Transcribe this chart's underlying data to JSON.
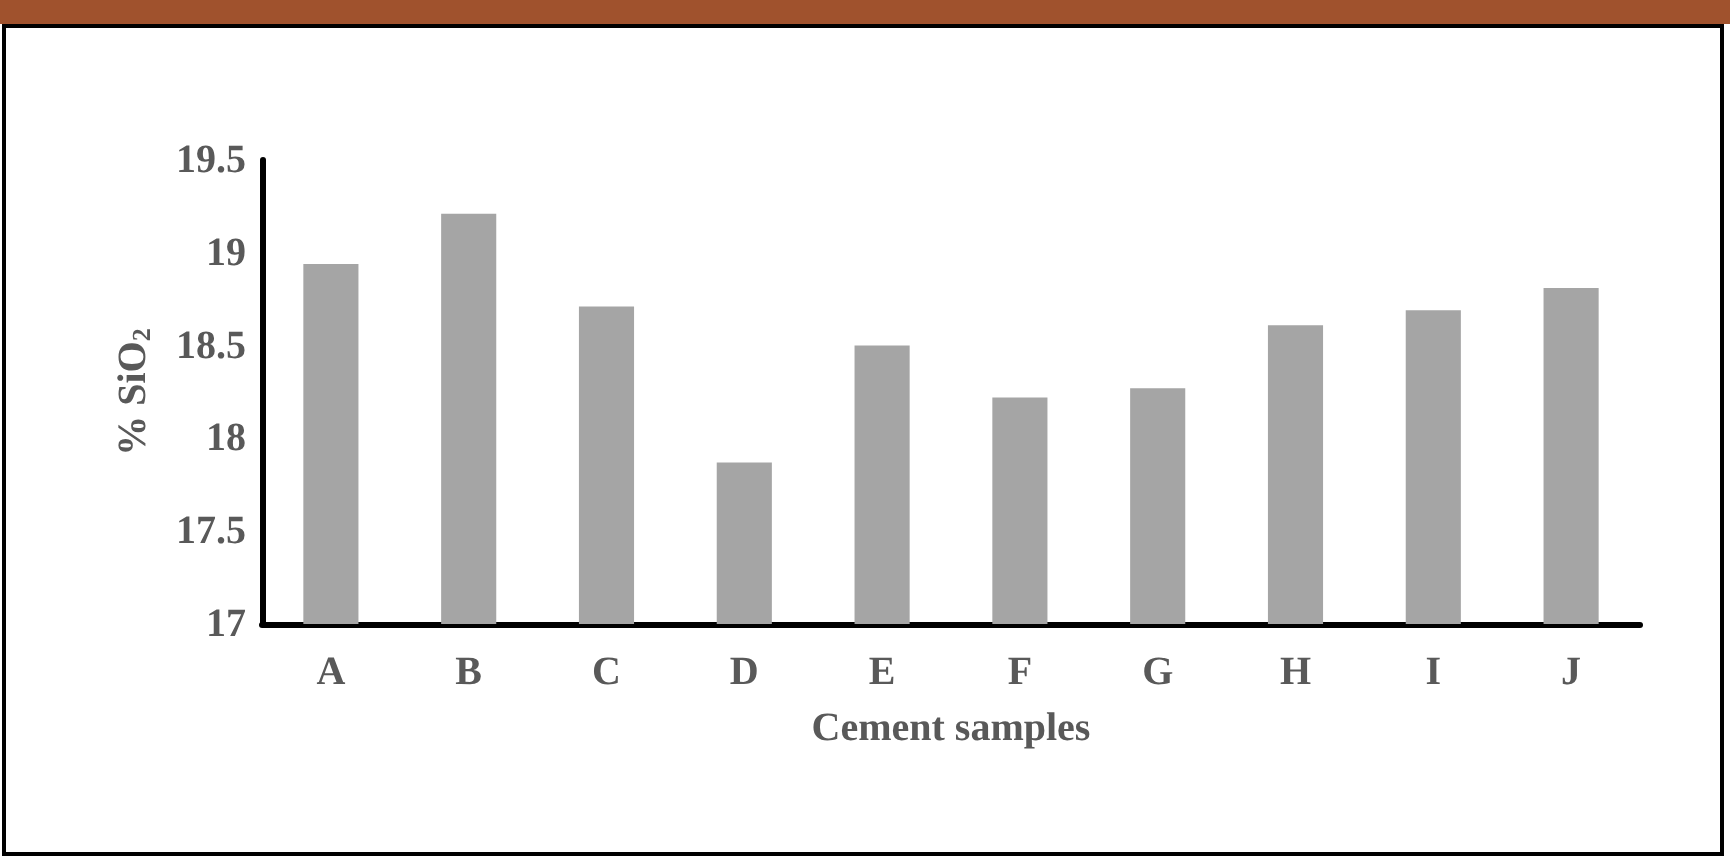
{
  "chart_data": {
    "type": "bar",
    "xlabel": "Cement samples",
    "ylabel": "% SiO$_{2}$",
    "categories": [
      "A",
      "B",
      "C",
      "D",
      "E",
      "F",
      "G",
      "H",
      "I",
      "J"
    ],
    "values": [
      18.94,
      19.21,
      18.71,
      17.87,
      18.5,
      18.22,
      18.27,
      18.61,
      18.69,
      18.81
    ],
    "color": "#a5a5a5",
    "ylim": [
      17,
      19.5
    ],
    "yticks": [
      17,
      17.5,
      18,
      18.5,
      19,
      19.5
    ],
    "grid": false
  }
}
